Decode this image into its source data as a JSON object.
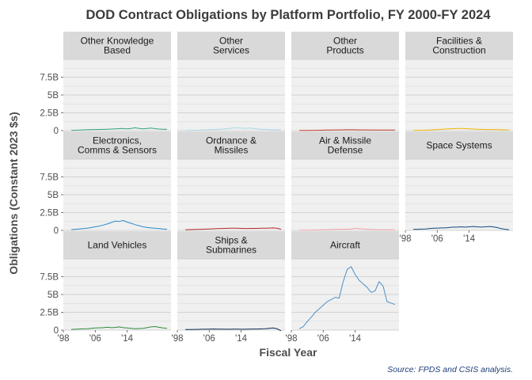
{
  "chart_data": {
    "type": "line",
    "title": "DOD Contract Obligations by Platform Portfolio, FY 2000-FY 2024",
    "xlabel": "Fiscal Year",
    "ylabel": "Obligations (Constant 2023 $s)",
    "caption": "Source: FPDS and CSIS analysis.",
    "x": [
      2000,
      2001,
      2002,
      2003,
      2004,
      2005,
      2006,
      2007,
      2008,
      2009,
      2010,
      2011,
      2012,
      2013,
      2014,
      2015,
      2016,
      2017,
      2018,
      2019,
      2020,
      2021,
      2022,
      2023,
      2024
    ],
    "xlim": [
      1998,
      2025
    ],
    "ylim": [
      0,
      10
    ],
    "unit": "B",
    "y_ticks": [
      {
        "value": 0,
        "label": "0"
      },
      {
        "value": 2.5,
        "label": "2.5B"
      },
      {
        "value": 5,
        "label": "5B"
      },
      {
        "value": 7.5,
        "label": "7.5B"
      }
    ],
    "x_ticks": [
      {
        "value": 1998,
        "label": "'98"
      },
      {
        "value": 2006,
        "label": "'06"
      },
      {
        "value": 2014,
        "label": "'14"
      }
    ],
    "grid": true,
    "legend": "none",
    "facets": [
      {
        "strip": [
          "Other Knowledge",
          "Based"
        ],
        "color": "#33a37a",
        "values": [
          0.05,
          0.06,
          0.08,
          0.1,
          0.12,
          0.15,
          0.16,
          0.17,
          0.18,
          0.2,
          0.22,
          0.25,
          0.28,
          0.3,
          0.25,
          0.3,
          0.4,
          0.3,
          0.25,
          0.3,
          0.35,
          0.28,
          0.22,
          0.2,
          0.18
        ]
      },
      {
        "strip": [
          "Other",
          "Services"
        ],
        "color": "#a8d8e8",
        "values": [
          0.03,
          0.04,
          0.05,
          0.06,
          0.08,
          0.1,
          0.12,
          0.15,
          0.18,
          0.2,
          0.25,
          0.3,
          0.35,
          0.4,
          0.35,
          0.3,
          0.35,
          0.3,
          0.25,
          0.2,
          0.18,
          0.15,
          0.12,
          0.1,
          0.08
        ]
      },
      {
        "strip": [
          "Other",
          "Products"
        ],
        "color": "#c0392b",
        "values": [
          0.02,
          0.02,
          0.03,
          0.04,
          0.05,
          0.06,
          0.07,
          0.08,
          0.09,
          0.1,
          0.1,
          0.11,
          0.12,
          0.12,
          0.11,
          0.1,
          0.1,
          0.1,
          0.09,
          0.09,
          0.09,
          0.08,
          0.08,
          0.08,
          0.08
        ]
      },
      {
        "strip": [
          "Facilities &",
          "Construction"
        ],
        "color": "#f0b400",
        "values": [
          0.03,
          0.04,
          0.05,
          0.07,
          0.09,
          0.12,
          0.15,
          0.18,
          0.22,
          0.25,
          0.28,
          0.3,
          0.3,
          0.28,
          0.25,
          0.22,
          0.2,
          0.18,
          0.16,
          0.15,
          0.14,
          0.13,
          0.12,
          0.1,
          0.1
        ]
      },
      {
        "strip": [
          "Electronics,",
          "Comms & Sensors"
        ],
        "color": "#2b8cc4",
        "values": [
          0.1,
          0.15,
          0.2,
          0.25,
          0.3,
          0.4,
          0.5,
          0.6,
          0.75,
          0.9,
          1.1,
          1.3,
          1.25,
          1.4,
          1.15,
          1.0,
          0.8,
          0.65,
          0.5,
          0.4,
          0.35,
          0.3,
          0.25,
          0.2,
          0.15
        ]
      },
      {
        "strip": [
          "Ordnance &",
          "Missiles"
        ],
        "color": "#b5282b",
        "values": [
          0.08,
          0.1,
          0.12,
          0.14,
          0.16,
          0.18,
          0.2,
          0.22,
          0.25,
          0.27,
          0.28,
          0.3,
          0.3,
          0.3,
          0.28,
          0.27,
          0.27,
          0.28,
          0.28,
          0.3,
          0.3,
          0.32,
          0.35,
          0.3,
          0.15
        ]
      },
      {
        "strip": [
          "Air & Missile",
          "Defense"
        ],
        "color": "#f4a3a8",
        "values": [
          0.03,
          0.03,
          0.04,
          0.05,
          0.06,
          0.07,
          0.08,
          0.1,
          0.12,
          0.14,
          0.15,
          0.15,
          0.15,
          0.2,
          0.3,
          0.25,
          0.2,
          0.15,
          0.12,
          0.1,
          0.1,
          0.09,
          0.08,
          0.08,
          0.07
        ]
      },
      {
        "strip": [
          "Space Systems"
        ],
        "color": "#0d4a80",
        "values": [
          0.15,
          0.15,
          0.18,
          0.2,
          0.25,
          0.3,
          0.3,
          0.35,
          0.35,
          0.4,
          0.45,
          0.45,
          0.5,
          0.45,
          0.5,
          0.55,
          0.5,
          0.45,
          0.5,
          0.55,
          0.5,
          0.4,
          0.25,
          0.15,
          0.1
        ]
      },
      {
        "strip": [
          "Land Vehicles"
        ],
        "color": "#2e8b3c",
        "values": [
          0.1,
          0.12,
          0.15,
          0.18,
          0.2,
          0.25,
          0.3,
          0.32,
          0.35,
          0.4,
          0.35,
          0.38,
          0.45,
          0.35,
          0.3,
          0.25,
          0.2,
          0.22,
          0.25,
          0.35,
          0.45,
          0.5,
          0.4,
          0.3,
          0.25
        ]
      },
      {
        "strip": [
          "Ships &",
          "Submarines"
        ],
        "color": "#0a2a52",
        "values": [
          0.08,
          0.08,
          0.1,
          0.1,
          0.12,
          0.12,
          0.14,
          0.15,
          0.14,
          0.13,
          0.12,
          0.12,
          0.13,
          0.14,
          0.12,
          0.12,
          0.13,
          0.15,
          0.16,
          0.18,
          0.2,
          0.25,
          0.3,
          0.2,
          -0.1
        ]
      },
      {
        "strip": [
          "Aircraft"
        ],
        "color": "#4f8fc7",
        "values": [
          0.2,
          0.5,
          1.2,
          1.8,
          2.5,
          3.0,
          3.5,
          4.0,
          4.3,
          4.6,
          4.5,
          6.8,
          8.5,
          8.9,
          7.8,
          7.0,
          6.5,
          6.0,
          5.3,
          5.5,
          6.8,
          6.2,
          4.0,
          3.8,
          3.6
        ]
      }
    ]
  }
}
